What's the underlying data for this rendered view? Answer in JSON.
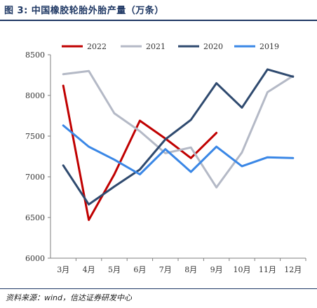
{
  "figure": {
    "title": "图 3:  中国橡胶轮胎外胎产量（万条）",
    "source": "资料来源：wind，信达证券研发中心"
  },
  "chart_data": {
    "type": "line",
    "title": "",
    "xlabel": "",
    "ylabel": "",
    "categories": [
      "3月",
      "4月",
      "5月",
      "6月",
      "7月",
      "8月",
      "9月",
      "10月",
      "11月",
      "12月"
    ],
    "yticks": [
      6000,
      6500,
      7000,
      7500,
      8000,
      8500
    ],
    "ylim": [
      6000,
      8500
    ],
    "grid": false,
    "legend_position": "top",
    "series": [
      {
        "name": "2022",
        "color": "#c00000",
        "values": [
          8120,
          6470,
          7030,
          7690,
          7470,
          7230,
          7540,
          null,
          null,
          null
        ]
      },
      {
        "name": "2021",
        "color": "#b4b9c6",
        "values": [
          8260,
          8300,
          7780,
          7560,
          7290,
          7360,
          6870,
          7300,
          8040,
          8240
        ]
      },
      {
        "name": "2020",
        "color": "#2f4a6f",
        "values": [
          7140,
          6660,
          6880,
          7090,
          7460,
          7700,
          8150,
          7850,
          8320,
          8230
        ]
      },
      {
        "name": "2019",
        "color": "#3a87e6",
        "values": [
          7630,
          7370,
          7210,
          7030,
          7340,
          7060,
          7370,
          7130,
          7240,
          7230
        ]
      }
    ]
  }
}
